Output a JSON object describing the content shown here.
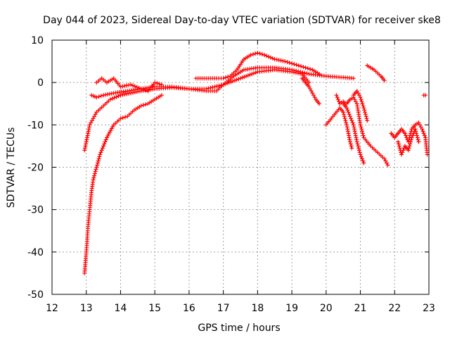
{
  "chart_data": {
    "type": "scatter",
    "title": "Day 044 of 2023, Sidereal Day-to-day VTEC variation (SDTVAR) for receiver ske8",
    "xlabel": "GPS time / hours",
    "ylabel": "SDTVAR / TECUs",
    "xlim": [
      12,
      23
    ],
    "ylim": [
      -50,
      10
    ],
    "xticks": [
      "12",
      "13",
      "14",
      "15",
      "16",
      "17",
      "18",
      "19",
      "20",
      "21",
      "22",
      "23"
    ],
    "yticks": [
      "10",
      "0",
      "-10",
      "-20",
      "-30",
      "-40",
      "-50"
    ],
    "grid": true,
    "marker": "+",
    "color": "#ff0000",
    "series": [
      {
        "name": "arc-1",
        "points": [
          [
            12.95,
            -45
          ],
          [
            12.98,
            -42
          ],
          [
            13.02,
            -38
          ],
          [
            13.05,
            -34
          ],
          [
            13.1,
            -30
          ],
          [
            13.15,
            -26
          ],
          [
            13.2,
            -23
          ],
          [
            13.3,
            -20
          ],
          [
            13.4,
            -17
          ],
          [
            13.5,
            -15
          ],
          [
            13.6,
            -13
          ],
          [
            13.8,
            -10
          ],
          [
            14,
            -8.5
          ],
          [
            14.2,
            -8
          ],
          [
            14.4,
            -6.5
          ],
          [
            14.6,
            -5.5
          ],
          [
            14.8,
            -5
          ],
          [
            15,
            -4
          ],
          [
            15.2,
            -3
          ]
        ]
      },
      {
        "name": "arc-2",
        "points": [
          [
            12.95,
            -16
          ],
          [
            13,
            -14
          ],
          [
            13.05,
            -12
          ],
          [
            13.1,
            -10
          ],
          [
            13.2,
            -8.5
          ],
          [
            13.3,
            -7
          ],
          [
            13.5,
            -5.5
          ],
          [
            13.7,
            -4
          ],
          [
            14,
            -3
          ],
          [
            14.3,
            -2.5
          ],
          [
            14.6,
            -2
          ],
          [
            15,
            -1.5
          ],
          [
            15.5,
            -1.2
          ],
          [
            16,
            -1.5
          ],
          [
            16.5,
            -1.5
          ],
          [
            17,
            -0.5
          ],
          [
            17.5,
            1
          ],
          [
            18,
            2.5
          ],
          [
            18.5,
            3
          ],
          [
            19,
            2.5
          ],
          [
            19.3,
            2
          ],
          [
            19.5,
            0
          ]
        ]
      },
      {
        "name": "arc-3",
        "points": [
          [
            13.15,
            -3
          ],
          [
            13.3,
            -3.5
          ],
          [
            13.5,
            -3
          ],
          [
            13.8,
            -2.5
          ],
          [
            14.2,
            -2
          ],
          [
            14.6,
            -1.5
          ],
          [
            15,
            -1
          ],
          [
            15.5,
            -1
          ],
          [
            16,
            -1.5
          ],
          [
            16.5,
            -2
          ],
          [
            16.8,
            -2
          ],
          [
            17,
            -0.5
          ],
          [
            17.3,
            1.5
          ],
          [
            17.6,
            3
          ],
          [
            18,
            3.5
          ],
          [
            18.5,
            3.5
          ],
          [
            19,
            3
          ],
          [
            19.5,
            2
          ],
          [
            20,
            1.5
          ],
          [
            20.5,
            1.2
          ],
          [
            20.8,
            1
          ]
        ]
      },
      {
        "name": "arc-4",
        "points": [
          [
            13.3,
            0
          ],
          [
            13.45,
            1
          ],
          [
            13.6,
            0
          ],
          [
            13.8,
            1
          ],
          [
            14,
            -1
          ],
          [
            14.3,
            -0.5
          ],
          [
            14.6,
            -1.5
          ],
          [
            14.8,
            -2
          ],
          [
            15,
            0
          ],
          [
            15.2,
            -0.5
          ]
        ]
      },
      {
        "name": "arc-5",
        "points": [
          [
            16.2,
            1
          ],
          [
            16.5,
            1
          ],
          [
            16.8,
            1
          ],
          [
            17,
            1
          ],
          [
            17.2,
            1.5
          ],
          [
            17.4,
            3
          ],
          [
            17.6,
            5.5
          ],
          [
            17.8,
            6.5
          ],
          [
            18,
            7
          ],
          [
            18.2,
            6.5
          ],
          [
            18.5,
            5.5
          ],
          [
            18.8,
            5
          ],
          [
            19,
            4.5
          ],
          [
            19.2,
            4
          ],
          [
            19.4,
            3.5
          ],
          [
            19.6,
            3
          ],
          [
            19.8,
            2
          ]
        ]
      },
      {
        "name": "arc-6",
        "points": [
          [
            19.3,
            1
          ],
          [
            19.4,
            0
          ],
          [
            19.5,
            -1
          ],
          [
            19.6,
            -2.5
          ],
          [
            19.7,
            -4
          ],
          [
            19.8,
            -5
          ]
        ]
      },
      {
        "name": "arc-7",
        "points": [
          [
            20,
            -10
          ],
          [
            20.2,
            -8
          ],
          [
            20.4,
            -6
          ],
          [
            20.5,
            -7
          ],
          [
            20.6,
            -10
          ],
          [
            20.7,
            -14
          ],
          [
            20.75,
            -15.5
          ]
        ]
      },
      {
        "name": "arc-8",
        "points": [
          [
            20.3,
            -3
          ],
          [
            20.4,
            -5
          ],
          [
            20.5,
            -4.5
          ],
          [
            20.6,
            -5
          ],
          [
            20.7,
            -4
          ],
          [
            20.8,
            -3.5
          ],
          [
            20.9,
            -5
          ],
          [
            21,
            -10
          ],
          [
            21.1,
            -13
          ],
          [
            21.3,
            -15
          ],
          [
            21.5,
            -16.5
          ],
          [
            21.7,
            -18
          ],
          [
            21.8,
            -19.5
          ]
        ]
      },
      {
        "name": "arc-9",
        "points": [
          [
            20.8,
            -3
          ],
          [
            20.9,
            -2
          ],
          [
            21,
            -3.5
          ],
          [
            21.1,
            -6
          ],
          [
            21.2,
            -9
          ]
        ]
      },
      {
        "name": "arc-10",
        "points": [
          [
            20.5,
            -5
          ],
          [
            20.6,
            -6
          ],
          [
            20.7,
            -8
          ],
          [
            20.8,
            -10
          ],
          [
            20.9,
            -14
          ],
          [
            21,
            -17
          ],
          [
            21.1,
            -19
          ]
        ]
      },
      {
        "name": "arc-11",
        "points": [
          [
            21.2,
            4
          ],
          [
            21.4,
            3
          ],
          [
            21.6,
            1.5
          ],
          [
            21.7,
            0.5
          ]
        ]
      },
      {
        "name": "arc-12",
        "points": [
          [
            21.9,
            -12
          ],
          [
            22,
            -13
          ],
          [
            22.1,
            -12
          ],
          [
            22.2,
            -11
          ],
          [
            22.3,
            -12
          ],
          [
            22.4,
            -14
          ],
          [
            22.5,
            -11
          ],
          [
            22.6,
            -10
          ],
          [
            22.7,
            -9.5
          ],
          [
            22.8,
            -11
          ],
          [
            22.9,
            -13
          ],
          [
            22.95,
            -17
          ]
        ]
      },
      {
        "name": "arc-13",
        "points": [
          [
            22.1,
            -14
          ],
          [
            22.2,
            -17
          ],
          [
            22.3,
            -15
          ],
          [
            22.4,
            -16
          ],
          [
            22.5,
            -13
          ],
          [
            22.6,
            -11
          ],
          [
            22.7,
            -14
          ]
        ]
      },
      {
        "name": "arc-14",
        "points": [
          [
            22.85,
            -3
          ],
          [
            22.9,
            -3
          ]
        ]
      }
    ]
  }
}
